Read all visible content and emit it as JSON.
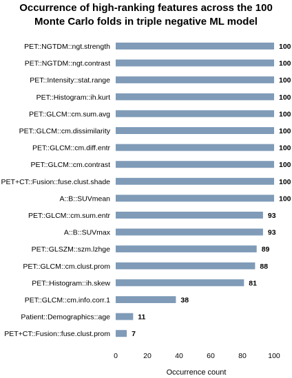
{
  "chart_data": {
    "type": "bar",
    "orientation": "horizontal",
    "title_line1": "Occurrence of high-ranking features across the 100",
    "title_line2": "Monte Carlo folds in triple negative ML model",
    "xlabel": "Occurrence count",
    "ylabel": "",
    "xlim": [
      0,
      100
    ],
    "xticks": [
      "0",
      "20",
      "40",
      "60",
      "80",
      "100"
    ],
    "grid": false,
    "bar_color": "#7f9bb8",
    "categories": [
      "PET::NGTDM::ngt.strength",
      "PET::NGTDM::ngt.contrast",
      "PET::Intensity::stat.range",
      "PET::Histogram::ih.kurt",
      "PET::GLCM::cm.sum.avg",
      "PET::GLCM::cm.dissimilarity",
      "PET::GLCM::cm.diff.entr",
      "PET::GLCM::cm.contrast",
      "PET+CT::Fusion::fuse.clust.shade",
      "A::B::SUVmean",
      "PET::GLCM::cm.sum.entr",
      "A::B::SUVmax",
      "PET::GLSZM::szm.lzhge",
      "PET::GLCM::cm.clust.prom",
      "PET::Histogram::ih.skew",
      "PET::GLCM::cm.info.corr.1",
      "Patient::Demographics::age",
      "PET+CT::Fusion::fuse.clust.prom"
    ],
    "values": [
      100,
      100,
      100,
      100,
      100,
      100,
      100,
      100,
      100,
      100,
      93,
      93,
      89,
      88,
      81,
      38,
      11,
      7
    ]
  }
}
